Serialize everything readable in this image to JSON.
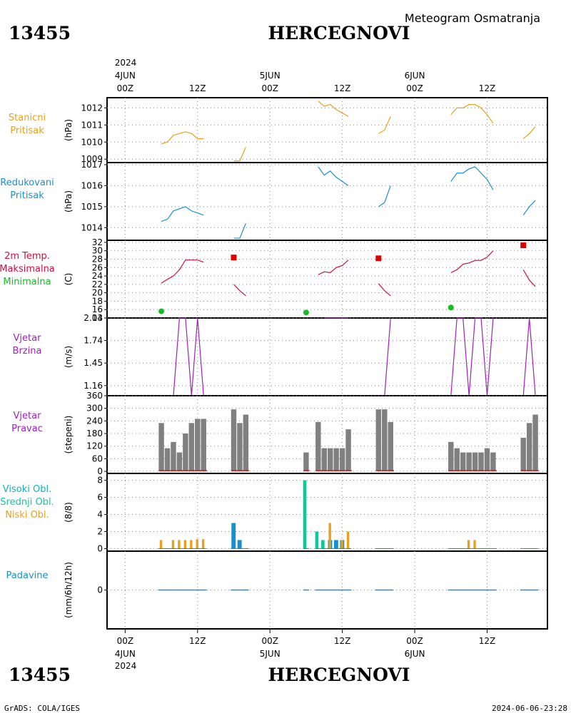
{
  "header": {
    "station": "13455",
    "city": "HERCEGNOVI",
    "product": "Meteogram Osmatranja"
  },
  "footer": {
    "left": "GrADS: COLA/IGES",
    "right": "2024-06-06-23:28"
  },
  "time_axis": {
    "top_year": "2024",
    "top_date": "4JUN",
    "bottom_year": "2024",
    "ticks": [
      {
        "hour": 0,
        "hour_label": "00Z",
        "date_label": "4JUN"
      },
      {
        "hour": 12,
        "hour_label": "12Z",
        "date_label": ""
      },
      {
        "hour": 24,
        "hour_label": "00Z",
        "date_label": "5JUN"
      },
      {
        "hour": 36,
        "hour_label": "12Z",
        "date_label": ""
      },
      {
        "hour": 48,
        "hour_label": "00Z",
        "date_label": "6JUN"
      },
      {
        "hour": 60,
        "hour_label": "12Z",
        "date_label": ""
      }
    ]
  },
  "colors": {
    "orange": "#e8a020",
    "blue": "#1890d0",
    "red": "#d01040",
    "green": "#10c020",
    "purple": "#a020c0",
    "gray": "#808080",
    "teal": "#10c8a0",
    "max_marker": "#e00000"
  },
  "panels": [
    {
      "key": "p",
      "labels": [
        "Stanicni",
        "Pritisak"
      ],
      "label_colors": [
        "#e8a020",
        "#e8a020"
      ],
      "unit": "(hPa)",
      "yticks": [
        "1009",
        "1010",
        "1011",
        "1012"
      ]
    },
    {
      "key": "pr",
      "labels": [
        "Redukovani",
        "Pritisak"
      ],
      "label_colors": [
        "#1890d0",
        "#1890d0"
      ],
      "unit": "(hPa)",
      "yticks": [
        "1014",
        "1015",
        "1016",
        "1017"
      ]
    },
    {
      "key": "t",
      "labels": [
        "2m Temp.",
        "Maksimalna",
        "Minimalna"
      ],
      "label_colors": [
        "#d01040",
        "#d01040",
        "#10c020"
      ],
      "unit": "(C)",
      "yticks": [
        "14",
        "16",
        "18",
        "20",
        "22",
        "24",
        "26",
        "28",
        "30",
        "32"
      ]
    },
    {
      "key": "ws",
      "labels": [
        "Vjetar",
        "Brzina"
      ],
      "label_colors": [
        "#a020c0",
        "#a020c0"
      ],
      "unit": "(m/s)",
      "yticks": [
        "1.16",
        "1.45",
        "1.74",
        "2.03"
      ]
    },
    {
      "key": "wd",
      "labels": [
        "Vjetar",
        "Pravac"
      ],
      "label_colors": [
        "#a020c0",
        "#a020c0"
      ],
      "unit": "(stepeni)",
      "yticks": [
        "0",
        "60",
        "120",
        "180",
        "240",
        "300",
        "360"
      ]
    },
    {
      "key": "cl",
      "labels": [
        "Visoki Obl.",
        "Srednji Obl.",
        "Niski Obl."
      ],
      "label_colors": [
        "#10b0c0",
        "#10c8a0",
        "#e8a020"
      ],
      "unit": "(8/8)",
      "yticks": [
        "0",
        "2",
        "4",
        "6",
        "8"
      ]
    },
    {
      "key": "pp",
      "labels": [
        "Padavine"
      ],
      "label_colors": [
        "#1890d0"
      ],
      "unit": "(mm/6h/12h)",
      "yticks": [
        "0"
      ]
    }
  ],
  "chart_data": {
    "type": "line",
    "x_unit": "hours since 2024-06-04 00Z",
    "xlim": [
      -3,
      70
    ],
    "station_pressure": {
      "ylim": [
        1008.8,
        1012.6
      ],
      "segments": [
        [
          [
            6,
            1009.9
          ],
          [
            7,
            1010.0
          ],
          [
            8,
            1010.4
          ],
          [
            9,
            1010.5
          ],
          [
            10,
            1010.6
          ],
          [
            11,
            1010.5
          ],
          [
            12,
            1010.2
          ],
          [
            13,
            1010.2
          ]
        ],
        [
          [
            18,
            1008.9
          ],
          [
            19,
            1008.9
          ],
          [
            20,
            1009.7
          ]
        ],
        [
          [
            32,
            1012.4
          ],
          [
            33,
            1012.1
          ],
          [
            34,
            1012.2
          ],
          [
            35,
            1011.9
          ],
          [
            36,
            1011.7
          ],
          [
            37,
            1011.5
          ]
        ],
        [
          [
            42,
            1010.5
          ],
          [
            43,
            1010.7
          ],
          [
            44,
            1011.5
          ]
        ],
        [
          [
            54,
            1011.6
          ],
          [
            55,
            1012.0
          ],
          [
            56,
            1012.0
          ],
          [
            57,
            1012.2
          ],
          [
            58,
            1012.2
          ],
          [
            59,
            1012.0
          ],
          [
            60,
            1011.6
          ],
          [
            61,
            1011.1
          ]
        ],
        [
          [
            66,
            1010.2
          ],
          [
            67,
            1010.5
          ],
          [
            68,
            1010.9
          ]
        ]
      ]
    },
    "reduced_pressure": {
      "ylim": [
        1013.4,
        1017.1
      ],
      "segments": [
        [
          [
            6,
            1014.3
          ],
          [
            7,
            1014.4
          ],
          [
            8,
            1014.8
          ],
          [
            9,
            1014.9
          ],
          [
            10,
            1015.0
          ],
          [
            11,
            1014.8
          ],
          [
            12,
            1014.7
          ],
          [
            13,
            1014.6
          ]
        ],
        [
          [
            18,
            1013.5
          ],
          [
            19,
            1013.5
          ],
          [
            20,
            1014.2
          ]
        ],
        [
          [
            32,
            1016.9
          ],
          [
            33,
            1016.5
          ],
          [
            34,
            1016.7
          ],
          [
            35,
            1016.4
          ],
          [
            36,
            1016.2
          ],
          [
            37,
            1016.0
          ]
        ],
        [
          [
            42,
            1015.0
          ],
          [
            43,
            1015.2
          ],
          [
            44,
            1016.0
          ]
        ],
        [
          [
            54,
            1016.2
          ],
          [
            55,
            1016.6
          ],
          [
            56,
            1016.6
          ],
          [
            57,
            1016.8
          ],
          [
            58,
            1016.9
          ],
          [
            59,
            1016.6
          ],
          [
            60,
            1016.3
          ],
          [
            61,
            1015.8
          ]
        ],
        [
          [
            66,
            1014.6
          ],
          [
            67,
            1015.0
          ],
          [
            68,
            1015.3
          ]
        ]
      ]
    },
    "temperature": {
      "ylim": [
        14,
        32.5
      ],
      "segments": [
        [
          [
            6,
            22.3
          ],
          [
            7,
            23.2
          ],
          [
            8,
            24.0
          ],
          [
            9,
            25.5
          ],
          [
            10,
            27.8
          ],
          [
            11,
            27.8
          ],
          [
            12,
            27.8
          ],
          [
            13,
            27.3
          ]
        ],
        [
          [
            18,
            22.0
          ],
          [
            19,
            20.5
          ],
          [
            20,
            19.3
          ]
        ],
        [
          [
            32,
            24.3
          ],
          [
            33,
            25.0
          ],
          [
            34,
            24.8
          ],
          [
            35,
            26.0
          ],
          [
            36,
            26.5
          ],
          [
            37,
            27.8
          ]
        ],
        [
          [
            42,
            22.2
          ],
          [
            43,
            20.5
          ],
          [
            44,
            19.3
          ]
        ],
        [
          [
            54,
            24.8
          ],
          [
            55,
            25.5
          ],
          [
            56,
            26.8
          ],
          [
            57,
            27.1
          ],
          [
            58,
            27.7
          ],
          [
            59,
            27.7
          ],
          [
            60,
            28.5
          ],
          [
            61,
            30.0
          ]
        ],
        [
          [
            66,
            25.5
          ],
          [
            67,
            23.0
          ],
          [
            68,
            21.5
          ]
        ]
      ],
      "max_markers": [
        [
          18,
          28.4
        ],
        [
          42,
          28.2
        ],
        [
          66,
          31.3
        ]
      ],
      "min_markers": [
        [
          6,
          15.6
        ],
        [
          30,
          15.3
        ],
        [
          54,
          16.5
        ]
      ]
    },
    "wind_speed": {
      "ylim": [
        1.03,
        2.03
      ],
      "segments": [
        [
          [
            6,
            1.03
          ],
          [
            8,
            1.03
          ],
          [
            9,
            2.03
          ],
          [
            10,
            2.03
          ],
          [
            11,
            1.03
          ],
          [
            12,
            2.03
          ],
          [
            13,
            1.03
          ]
        ],
        [
          [
            18,
            1.03
          ],
          [
            20,
            1.03
          ]
        ],
        [
          [
            33,
            2.03
          ],
          [
            37,
            2.03
          ]
        ],
        [
          [
            42,
            1.03
          ],
          [
            43,
            1.03
          ],
          [
            44,
            2.03
          ]
        ],
        [
          [
            54,
            1.03
          ],
          [
            55,
            2.03
          ],
          [
            56,
            2.03
          ],
          [
            57,
            1.03
          ],
          [
            58,
            2.03
          ],
          [
            59,
            2.03
          ],
          [
            60,
            1.03
          ],
          [
            61,
            2.03
          ]
        ],
        [
          [
            66,
            1.03
          ],
          [
            67,
            2.03
          ],
          [
            68,
            1.03
          ]
        ]
      ]
    },
    "wind_direction": {
      "ylim": [
        -10,
        360
      ],
      "bars": [
        [
          6,
          230
        ],
        [
          7,
          110
        ],
        [
          8,
          140
        ],
        [
          9,
          90
        ],
        [
          10,
          180
        ],
        [
          11,
          230
        ],
        [
          12,
          250
        ],
        [
          13,
          250
        ],
        [
          18,
          295
        ],
        [
          19,
          230
        ],
        [
          20,
          270
        ],
        [
          30,
          90
        ],
        [
          32,
          235
        ],
        [
          33,
          110
        ],
        [
          34,
          110
        ],
        [
          35,
          110
        ],
        [
          36,
          110
        ],
        [
          37,
          200
        ],
        [
          42,
          295
        ],
        [
          43,
          295
        ],
        [
          44,
          235
        ],
        [
          54,
          140
        ],
        [
          55,
          110
        ],
        [
          56,
          90
        ],
        [
          57,
          90
        ],
        [
          58,
          90
        ],
        [
          59,
          90
        ],
        [
          60,
          110
        ],
        [
          61,
          90
        ],
        [
          66,
          160
        ],
        [
          67,
          230
        ],
        [
          68,
          270
        ]
      ]
    },
    "clouds": {
      "ylim": [
        -0.3,
        8.8
      ],
      "low": [
        [
          6,
          1
        ],
        [
          8,
          1
        ],
        [
          9,
          1
        ],
        [
          10,
          1
        ],
        [
          11,
          1
        ],
        [
          12,
          1.1
        ],
        [
          13,
          1.1
        ],
        [
          34,
          3
        ],
        [
          36,
          1
        ],
        [
          37,
          2
        ],
        [
          57,
          1
        ],
        [
          58,
          1
        ]
      ],
      "middle": [
        [
          30,
          8
        ],
        [
          32,
          2
        ],
        [
          33,
          1
        ]
      ],
      "high": [
        [
          18,
          3
        ],
        [
          19,
          1
        ],
        [
          34,
          1
        ],
        [
          35,
          1
        ],
        [
          36,
          1
        ]
      ]
    },
    "precipitation": {
      "ylim": [
        -1,
        1
      ],
      "hours_with_zero": [
        6,
        7,
        8,
        9,
        10,
        11,
        12,
        13,
        18,
        19,
        20,
        30,
        32,
        33,
        34,
        35,
        36,
        37,
        42,
        43,
        44,
        54,
        55,
        56,
        57,
        58,
        59,
        60,
        61,
        66,
        67,
        68
      ]
    }
  }
}
